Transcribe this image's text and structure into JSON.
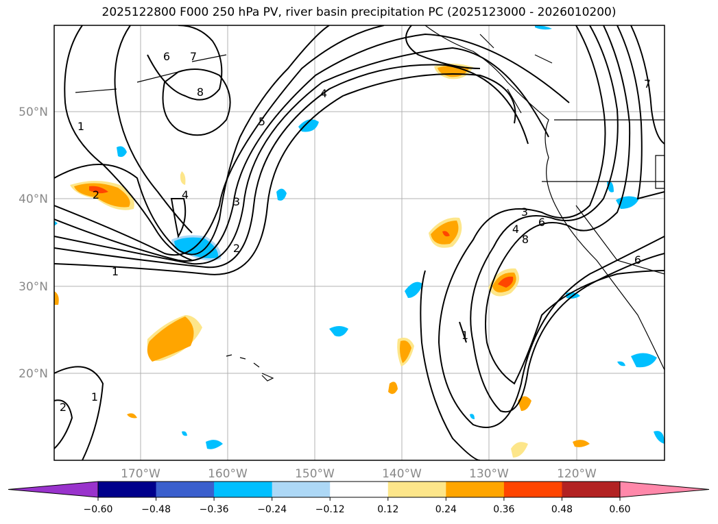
{
  "title": "2025122800 F000 250 hPa PV, river basin precipitation PC (2025123000 - 2026010200)",
  "map": {
    "lat_labels": [
      "50°N",
      "40°N",
      "30°N",
      "20°N"
    ],
    "lon_labels": [
      "170°W",
      "160°W",
      "150°W",
      "140°W",
      "130°W",
      "120°W"
    ],
    "grid_color": "#b0b0b0",
    "label_color": "#888888"
  },
  "contour_labels": [
    "1",
    "2",
    "3",
    "4",
    "5",
    "6",
    "7",
    "8",
    "1",
    "2",
    "1",
    "2",
    "3",
    "4",
    "6",
    "8",
    "7",
    "4",
    "1",
    "6"
  ],
  "colorbar": {
    "ticks": [
      "−0.60",
      "−0.48",
      "−0.36",
      "−0.24",
      "−0.12",
      "0.12",
      "0.24",
      "0.36",
      "0.48",
      "0.60"
    ],
    "colors": [
      "#9933cc",
      "#00008b",
      "#3a5fcd",
      "#00bfff",
      "#add8f6",
      "#ffffff",
      "#fde68a",
      "#ffa500",
      "#ff4500",
      "#b22222",
      "#ff88aa"
    ]
  }
}
